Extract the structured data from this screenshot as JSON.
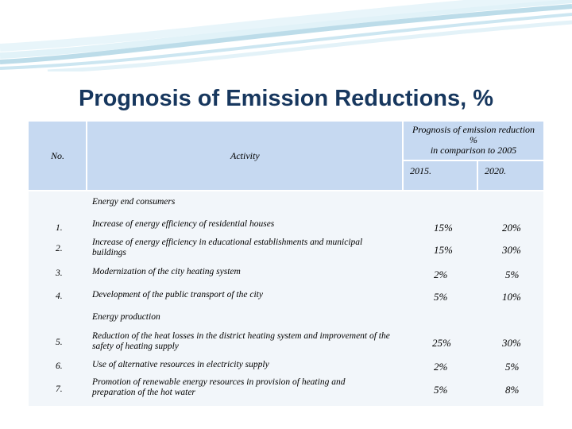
{
  "title": "Prognosis of Emission Reductions,  %",
  "table": {
    "header": {
      "no": "No.",
      "activity": "Activity",
      "prognosis_line1": "Prognosis of emission reduction",
      "prognosis_line2": "%",
      "prognosis_line3": "in comparison to 2005",
      "year1": "2015.",
      "year2": "2020."
    },
    "sections": [
      {
        "label": "Energy end consumers",
        "rows": [
          {
            "no": "1.",
            "activity": "Increase of energy efficiency  of residential houses",
            "v2015": "15%",
            "v2020": "20%"
          },
          {
            "no": "2.",
            "activity": "Increase of energy efficiency in educational establishments  and municipal buildings",
            "v2015": "15%",
            "v2020": "30%"
          },
          {
            "no": "3.",
            "activity": "Modernization of the city heating system",
            "v2015": "2%",
            "v2020": "5%"
          },
          {
            "no": "4.",
            "activity": "Development of the public transport of the city",
            "v2015": "5%",
            "v2020": "10%"
          }
        ]
      },
      {
        "label": "Energy production",
        "rows": [
          {
            "no": "5.",
            "activity": "Reduction of the heat losses in the  district heating system and  improvement of the  safety of heating supply",
            "v2015": "25%",
            "v2020": "30%"
          },
          {
            "no": "6.",
            "activity": "Use of alternative resources in electricity supply",
            "v2015": "2%",
            "v2020": "5%"
          },
          {
            "no": "7.",
            "activity": "Promotion of renewable energy resources in provision of heating  and preparation of the hot water",
            "v2015": "5%",
            "v2020": "8%"
          }
        ]
      }
    ]
  }
}
